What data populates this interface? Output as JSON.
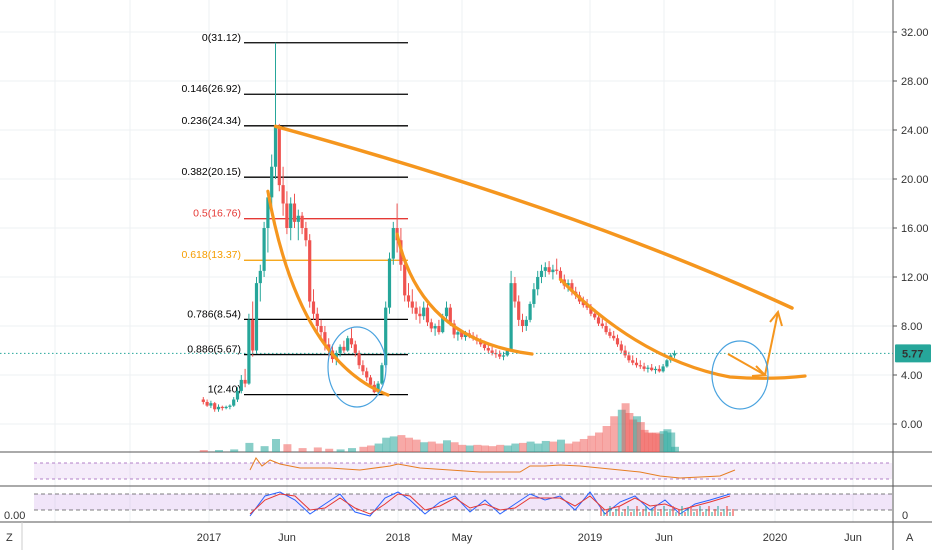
{
  "chart_data": {
    "type": "candlestick",
    "price_axis": {
      "ticks": [
        "32.00",
        "28.00",
        "24.00",
        "20.00",
        "16.00",
        "12.00",
        "8.00",
        "4.00",
        "0.00"
      ],
      "tick_values": [
        32,
        28,
        24,
        20,
        16,
        12,
        8,
        4,
        0
      ],
      "current_price_label": "5.77",
      "current_price": 5.77,
      "accent_color": "#26a69a"
    },
    "time_axis": {
      "labels": [
        "2017",
        "Jun",
        "2018",
        "May",
        "2019",
        "Jun",
        "2020",
        "Jun"
      ]
    },
    "fib_levels": [
      {
        "label": "0(31.12)",
        "value": 31.12,
        "color": "#000000"
      },
      {
        "label": "0.146(26.92)",
        "value": 26.92,
        "color": "#000000"
      },
      {
        "label": "0.236(24.34)",
        "value": 24.34,
        "color": "#000000"
      },
      {
        "label": "0.382(20.15)",
        "value": 20.15,
        "color": "#000000"
      },
      {
        "label": "0.5(16.76)",
        "value": 16.76,
        "color": "#e53935"
      },
      {
        "label": "0.618(13.37)",
        "value": 13.37,
        "color": "#f59d00"
      },
      {
        "label": "0.786(8.54)",
        "value": 8.54,
        "color": "#000000"
      },
      {
        "label": "0.886(5.67)",
        "value": 5.67,
        "color": "#000000"
      },
      {
        "label": "1(2.40)",
        "value": 2.4,
        "color": "#000000"
      }
    ],
    "candles": [
      [
        2016.97,
        2.0,
        2.2,
        1.6,
        1.8
      ],
      [
        2016.99,
        1.8,
        2.0,
        1.4,
        1.5
      ],
      [
        2017.01,
        1.5,
        1.9,
        1.3,
        1.7
      ],
      [
        2017.03,
        1.7,
        1.8,
        1.0,
        1.2
      ],
      [
        2017.05,
        1.2,
        1.6,
        1.0,
        1.4
      ],
      [
        2017.07,
        1.4,
        1.5,
        1.1,
        1.3
      ],
      [
        2017.09,
        1.3,
        1.5,
        1.2,
        1.4
      ],
      [
        2017.11,
        1.4,
        1.6,
        1.2,
        1.5
      ],
      [
        2017.13,
        1.5,
        2.2,
        1.4,
        2.0
      ],
      [
        2017.15,
        2.0,
        3.0,
        1.8,
        2.7
      ],
      [
        2017.17,
        2.7,
        4.0,
        2.5,
        3.6
      ],
      [
        2017.19,
        3.6,
        4.5,
        3.0,
        3.3
      ],
      [
        2017.21,
        3.3,
        9.0,
        3.2,
        8.5
      ],
      [
        2017.23,
        8.5,
        10.0,
        5.5,
        6.0
      ],
      [
        2017.25,
        6.0,
        12.0,
        5.8,
        11.5
      ],
      [
        2017.27,
        11.5,
        13.0,
        10.0,
        12.5
      ],
      [
        2017.29,
        12.5,
        16.5,
        12.0,
        16.0
      ],
      [
        2017.31,
        16.0,
        19.0,
        14.0,
        18.5
      ],
      [
        2017.33,
        18.5,
        22.0,
        17.0,
        21.0
      ],
      [
        2017.35,
        21.0,
        31.12,
        20.0,
        24.3
      ],
      [
        2017.37,
        24.3,
        24.5,
        19.0,
        19.5
      ],
      [
        2017.39,
        19.5,
        21.0,
        17.0,
        18.0
      ],
      [
        2017.41,
        18.0,
        19.0,
        15.5,
        16.0
      ],
      [
        2017.43,
        16.0,
        18.5,
        15.0,
        18.0
      ],
      [
        2017.45,
        18.0,
        18.8,
        16.0,
        16.5
      ],
      [
        2017.47,
        16.5,
        17.5,
        15.0,
        17.0
      ],
      [
        2017.49,
        17.0,
        17.3,
        15.5,
        16.0
      ],
      [
        2017.51,
        16.0,
        16.5,
        14.5,
        15.0
      ],
      [
        2017.53,
        15.0,
        15.5,
        9.5,
        10.0
      ],
      [
        2017.55,
        10.0,
        11.0,
        8.5,
        9.0
      ],
      [
        2017.57,
        9.0,
        9.5,
        7.5,
        8.0
      ],
      [
        2017.59,
        8.0,
        8.5,
        7.0,
        7.5
      ],
      [
        2017.61,
        7.5,
        8.0,
        6.0,
        6.5
      ],
      [
        2017.63,
        6.5,
        7.0,
        5.5,
        6.0
      ],
      [
        2017.65,
        6.0,
        6.5,
        5.0,
        5.3
      ],
      [
        2017.67,
        5.3,
        6.0,
        4.8,
        5.8
      ],
      [
        2017.69,
        5.8,
        6.5,
        5.5,
        6.3
      ],
      [
        2017.71,
        6.3,
        6.8,
        5.8,
        6.0
      ],
      [
        2017.73,
        6.0,
        7.2,
        5.9,
        7.0
      ],
      [
        2017.75,
        7.0,
        7.8,
        6.2,
        6.5
      ],
      [
        2017.77,
        6.5,
        6.8,
        5.5,
        5.8
      ],
      [
        2017.79,
        5.8,
        6.0,
        4.5,
        4.8
      ],
      [
        2017.81,
        4.8,
        5.2,
        4.0,
        4.3
      ],
      [
        2017.83,
        4.3,
        4.6,
        3.5,
        3.8
      ],
      [
        2017.85,
        3.8,
        4.0,
        3.0,
        3.2
      ],
      [
        2017.87,
        3.2,
        3.5,
        2.5,
        2.6
      ],
      [
        2017.89,
        2.6,
        3.5,
        2.4,
        3.3
      ],
      [
        2017.91,
        3.3,
        5.0,
        3.2,
        4.8
      ],
      [
        2017.93,
        4.8,
        10.0,
        4.6,
        9.5
      ],
      [
        2017.95,
        9.5,
        14.0,
        9.0,
        13.5
      ],
      [
        2017.97,
        13.5,
        16.5,
        13.0,
        16.0
      ],
      [
        2017.99,
        16.0,
        18.0,
        14.0,
        15.0
      ],
      [
        2018.01,
        15.0,
        16.0,
        12.5,
        13.0
      ],
      [
        2018.03,
        13.0,
        13.5,
        10.0,
        10.5
      ],
      [
        2018.05,
        10.5,
        11.5,
        9.5,
        10.0
      ],
      [
        2018.07,
        10.0,
        11.0,
        9.0,
        9.5
      ],
      [
        2018.09,
        9.5,
        10.0,
        8.5,
        9.0
      ],
      [
        2018.11,
        9.0,
        9.6,
        8.2,
        8.8
      ],
      [
        2018.13,
        8.8,
        10.0,
        8.5,
        9.5
      ],
      [
        2018.15,
        9.5,
        9.8,
        8.0,
        8.3
      ],
      [
        2018.17,
        8.3,
        8.6,
        7.5,
        7.8
      ],
      [
        2018.19,
        7.8,
        8.2,
        7.2,
        8.0
      ],
      [
        2018.21,
        8.0,
        8.5,
        7.3,
        7.5
      ],
      [
        2018.23,
        7.5,
        9.0,
        7.4,
        8.8
      ],
      [
        2018.25,
        8.8,
        10.0,
        8.5,
        9.5
      ],
      [
        2018.27,
        9.5,
        9.8,
        8.0,
        8.2
      ],
      [
        2018.29,
        8.2,
        8.5,
        7.0,
        7.3
      ],
      [
        2018.31,
        7.3,
        7.8,
        6.8,
        7.5
      ],
      [
        2018.33,
        7.5,
        7.7,
        6.9,
        7.1
      ],
      [
        2018.35,
        7.1,
        7.6,
        6.8,
        7.4
      ],
      [
        2018.37,
        7.4,
        7.7,
        7.0,
        7.2
      ],
      [
        2018.39,
        7.2,
        7.5,
        6.8,
        7.0
      ],
      [
        2018.41,
        7.0,
        7.3,
        6.5,
        6.8
      ],
      [
        2018.43,
        6.8,
        7.0,
        6.3,
        6.5
      ],
      [
        2018.45,
        6.5,
        6.8,
        6.0,
        6.2
      ],
      [
        2018.47,
        6.2,
        6.5,
        5.8,
        6.0
      ],
      [
        2018.49,
        6.0,
        6.3,
        5.6,
        5.8
      ],
      [
        2018.51,
        5.8,
        6.1,
        5.4,
        5.7
      ],
      [
        2018.53,
        5.7,
        6.0,
        5.3,
        5.5
      ],
      [
        2018.55,
        5.5,
        5.9,
        5.2,
        5.6
      ],
      [
        2018.57,
        5.6,
        6.2,
        5.5,
        6.0
      ],
      [
        2018.59,
        6.0,
        12.5,
        5.9,
        11.5
      ],
      [
        2018.61,
        11.5,
        12.0,
        9.5,
        10.0
      ],
      [
        2018.63,
        10.0,
        10.5,
        8.0,
        8.5
      ],
      [
        2018.65,
        8.5,
        9.0,
        7.5,
        8.0
      ],
      [
        2018.67,
        8.0,
        8.8,
        7.6,
        8.5
      ],
      [
        2018.69,
        8.5,
        10.0,
        8.3,
        9.8
      ],
      [
        2018.71,
        9.8,
        11.5,
        9.5,
        11.0
      ],
      [
        2018.73,
        11.0,
        12.5,
        10.5,
        12.0
      ],
      [
        2018.75,
        12.0,
        13.0,
        11.5,
        12.5
      ],
      [
        2018.77,
        12.5,
        13.2,
        12.0,
        12.8
      ],
      [
        2018.79,
        12.8,
        13.3,
        12.2,
        12.4
      ],
      [
        2018.81,
        12.4,
        13.0,
        11.8,
        12.6
      ],
      [
        2018.83,
        12.6,
        13.5,
        12.2,
        12.5
      ],
      [
        2018.85,
        12.5,
        12.8,
        11.5,
        11.8
      ],
      [
        2018.87,
        11.8,
        12.2,
        11.0,
        11.3
      ],
      [
        2018.89,
        11.3,
        11.8,
        10.8,
        11.5
      ],
      [
        2018.91,
        11.5,
        11.8,
        10.5,
        10.8
      ],
      [
        2018.93,
        10.8,
        11.2,
        10.2,
        10.5
      ],
      [
        2018.95,
        10.5,
        10.8,
        9.8,
        10.0
      ],
      [
        2018.97,
        10.0,
        10.4,
        9.5,
        9.7
      ],
      [
        2018.99,
        9.7,
        10.2,
        9.3,
        9.5
      ],
      [
        2019.01,
        9.5,
        9.8,
        8.8,
        9.0
      ],
      [
        2019.03,
        9.0,
        9.4,
        8.5,
        8.7
      ],
      [
        2019.05,
        8.7,
        9.0,
        8.0,
        8.2
      ],
      [
        2019.07,
        8.2,
        8.6,
        7.8,
        8.0
      ],
      [
        2019.09,
        8.0,
        8.3,
        7.3,
        7.5
      ],
      [
        2019.11,
        7.5,
        7.8,
        7.0,
        7.2
      ],
      [
        2019.13,
        7.2,
        7.6,
        6.8,
        7.0
      ],
      [
        2019.15,
        7.0,
        7.3,
        6.3,
        6.5
      ],
      [
        2019.17,
        6.5,
        6.8,
        5.8,
        6.0
      ],
      [
        2019.19,
        6.0,
        6.4,
        5.4,
        5.6
      ],
      [
        2019.21,
        5.6,
        5.9,
        5.0,
        5.2
      ],
      [
        2019.23,
        5.2,
        5.6,
        4.8,
        5.0
      ],
      [
        2019.25,
        5.0,
        5.4,
        4.6,
        4.8
      ],
      [
        2019.27,
        4.8,
        5.2,
        4.5,
        4.7
      ],
      [
        2019.29,
        4.7,
        5.0,
        4.3,
        4.5
      ],
      [
        2019.31,
        4.5,
        4.8,
        4.2,
        4.6
      ],
      [
        2019.33,
        4.6,
        4.9,
        4.3,
        4.4
      ],
      [
        2019.35,
        4.4,
        4.7,
        4.1,
        4.5
      ],
      [
        2019.37,
        4.5,
        4.8,
        4.2,
        4.3
      ],
      [
        2019.39,
        4.3,
        4.9,
        4.2,
        4.7
      ],
      [
        2019.41,
        4.7,
        5.3,
        4.6,
        5.2
      ],
      [
        2019.43,
        5.2,
        5.8,
        5.0,
        5.6
      ],
      [
        2019.45,
        5.6,
        6.0,
        5.4,
        5.77
      ]
    ],
    "volume_bars": [
      [
        2016.97,
        0.3,
        "down"
      ],
      [
        2017.05,
        0.3,
        "up"
      ],
      [
        2017.13,
        0.4,
        "up"
      ],
      [
        2017.21,
        1.4,
        "up"
      ],
      [
        2017.29,
        0.9,
        "up"
      ],
      [
        2017.35,
        2.0,
        "up"
      ],
      [
        2017.41,
        1.2,
        "down"
      ],
      [
        2017.49,
        0.6,
        "down"
      ],
      [
        2017.57,
        0.7,
        "down"
      ],
      [
        2017.63,
        0.5,
        "down"
      ],
      [
        2017.69,
        0.4,
        "up"
      ],
      [
        2017.75,
        0.6,
        "up"
      ],
      [
        2017.81,
        0.8,
        "down"
      ],
      [
        2017.85,
        1.0,
        "down"
      ],
      [
        2017.89,
        1.3,
        "up"
      ],
      [
        2017.93,
        2.2,
        "up"
      ],
      [
        2017.97,
        2.4,
        "up"
      ],
      [
        2018.01,
        2.6,
        "down"
      ],
      [
        2018.05,
        2.2,
        "down"
      ],
      [
        2018.09,
        1.9,
        "down"
      ],
      [
        2018.13,
        1.5,
        "up"
      ],
      [
        2018.17,
        1.6,
        "down"
      ],
      [
        2018.21,
        1.3,
        "down"
      ],
      [
        2018.25,
        1.8,
        "up"
      ],
      [
        2018.29,
        1.5,
        "down"
      ],
      [
        2018.33,
        1.1,
        "down"
      ],
      [
        2018.37,
        1.0,
        "up"
      ],
      [
        2018.41,
        1.1,
        "down"
      ],
      [
        2018.45,
        1.0,
        "down"
      ],
      [
        2018.49,
        0.9,
        "down"
      ],
      [
        2018.53,
        1.1,
        "down"
      ],
      [
        2018.57,
        1.0,
        "up"
      ],
      [
        2018.61,
        1.3,
        "up"
      ],
      [
        2018.65,
        1.4,
        "down"
      ],
      [
        2018.69,
        1.6,
        "up"
      ],
      [
        2018.73,
        1.3,
        "up"
      ],
      [
        2018.77,
        1.7,
        "up"
      ],
      [
        2018.81,
        1.6,
        "down"
      ],
      [
        2018.85,
        1.9,
        "up"
      ],
      [
        2018.89,
        1.3,
        "down"
      ],
      [
        2018.93,
        1.6,
        "down"
      ],
      [
        2018.97,
        2.0,
        "down"
      ],
      [
        2019.01,
        2.5,
        "down"
      ],
      [
        2019.05,
        3.0,
        "down"
      ],
      [
        2019.09,
        4.0,
        "down"
      ],
      [
        2019.13,
        5.5,
        "down"
      ],
      [
        2019.17,
        6.5,
        "up"
      ],
      [
        2019.19,
        7.5,
        "down"
      ],
      [
        2019.21,
        6.0,
        "down"
      ],
      [
        2019.23,
        5.0,
        "down"
      ],
      [
        2019.25,
        5.5,
        "up"
      ],
      [
        2019.27,
        4.6,
        "down"
      ],
      [
        2019.29,
        3.4,
        "down"
      ],
      [
        2019.31,
        3.0,
        "down"
      ],
      [
        2019.33,
        2.9,
        "down"
      ],
      [
        2019.35,
        3.0,
        "down"
      ],
      [
        2019.37,
        2.8,
        "down"
      ],
      [
        2019.39,
        3.2,
        "up"
      ],
      [
        2019.41,
        3.5,
        "up"
      ],
      [
        2019.43,
        3.0,
        "up"
      ],
      [
        2019.45,
        0.8,
        "up"
      ]
    ],
    "lower_pane_axis": {
      "label": "0.00",
      "right_label": "0"
    },
    "colors": {
      "up": "#26a69a",
      "down": "#ef5350",
      "orange": "#f5961e",
      "fib_red": "#e53935",
      "fib_orange": "#f59d00"
    }
  },
  "footer": {
    "left_label": "Z",
    "right_label": "A"
  }
}
